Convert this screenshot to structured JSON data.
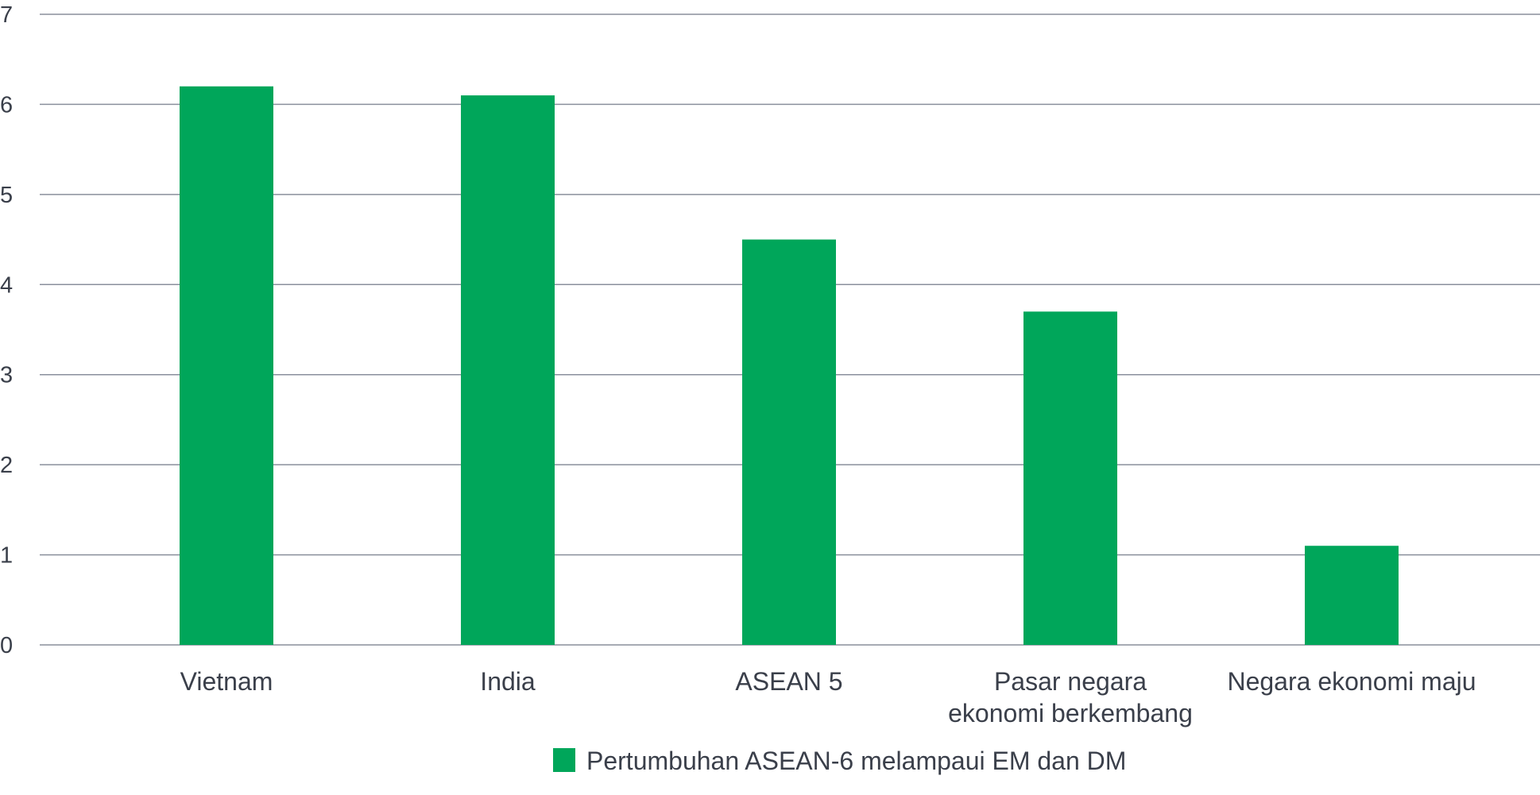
{
  "chart_data": {
    "type": "bar",
    "categories": [
      [
        "Vietnam"
      ],
      [
        "India"
      ],
      [
        "ASEAN 5"
      ],
      [
        "Pasar negara",
        "ekonomi berkembang"
      ],
      [
        "Negara ekonomi maju"
      ]
    ],
    "series": [
      {
        "name": "Pertumbuhan ASEAN-6 melampaui EM dan DM",
        "values": [
          6.2,
          6.1,
          4.5,
          3.7,
          1.1
        ],
        "color": "#00a65a"
      }
    ],
    "ylim": [
      0,
      7
    ],
    "yticks": [
      "0",
      "1",
      "2",
      "3",
      "4",
      "5",
      "6",
      "7"
    ],
    "grid": true,
    "legend_position": "bottom-center",
    "colors": {
      "gridline": "#8a8f9c",
      "text": "#3a3f4a"
    }
  }
}
